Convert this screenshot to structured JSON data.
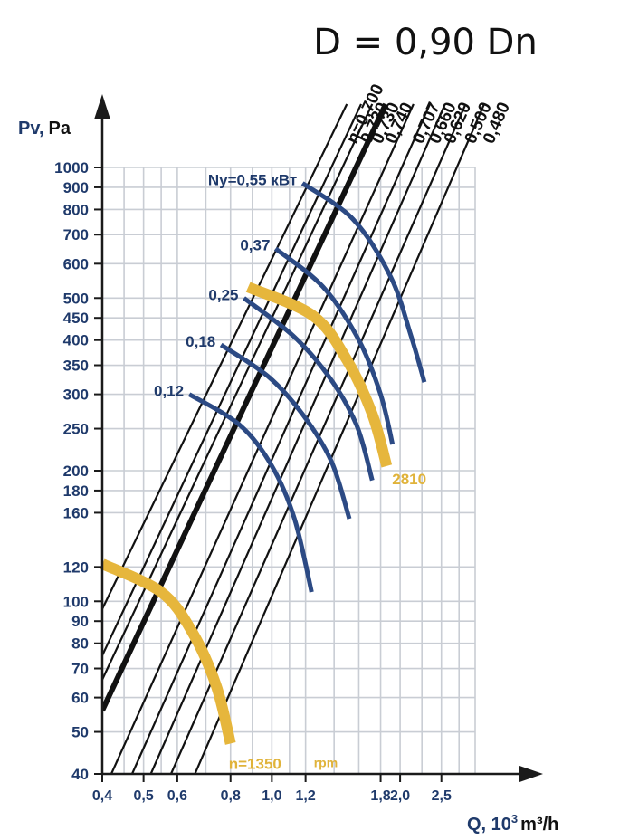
{
  "title": "D = 0,90 Dn",
  "colors": {
    "grid": "#c9cdd4",
    "axis": "#1a1a1a",
    "power_curve": "#2c4a84",
    "speed_curve": "#e6b63c",
    "text_blue": "#1f3a6b"
  },
  "chart_data": {
    "type": "line",
    "x_scale": "log",
    "y_scale": "log",
    "xlabel_prefix": "Q, 10",
    "xlabel_sup": "3",
    "xlabel_suffix": "m³/h",
    "ylabel_prefix": "Pv,",
    "ylabel_suffix": "Pa",
    "x_ticks": [
      0.4,
      0.5,
      0.6,
      0.8,
      1.0,
      1.2,
      1.8,
      2.0,
      2.5
    ],
    "x_tick_labels": [
      "0,4",
      "0,5",
      "0,6",
      "0,8",
      "1,0",
      "1,2",
      "1,8",
      "2,0",
      "2,5"
    ],
    "y_ticks": [
      40,
      50,
      60,
      70,
      80,
      90,
      100,
      120,
      160,
      180,
      200,
      250,
      300,
      350,
      400,
      450,
      500,
      600,
      700,
      800,
      900,
      1000
    ],
    "y_tick_labels": [
      "40",
      "50",
      "60",
      "70",
      "80",
      "90",
      "100",
      "120",
      "160",
      "180",
      "200",
      "250",
      "300",
      "350",
      "400",
      "450",
      "500",
      "600",
      "700",
      "800",
      "900",
      "1000"
    ],
    "efficiency_lines": [
      {
        "label": "η=0,700",
        "bold": false,
        "start": [
          0.4,
          96
        ],
        "end": [
          1.5,
          1400
        ]
      },
      {
        "label": "0,720",
        "bold": false,
        "start": [
          0.4,
          75
        ],
        "end": [
          1.62,
          1400
        ]
      },
      {
        "label": "0,730",
        "bold": false,
        "start": [
          0.4,
          66
        ],
        "end": [
          1.72,
          1400
        ]
      },
      {
        "label": "0,740",
        "bold": true,
        "start": [
          0.4,
          56
        ],
        "end": [
          1.85,
          1400
        ]
      },
      {
        "label": "0,707",
        "bold": false,
        "start": [
          0.42,
          40
        ],
        "end": [
          2.15,
          1400
        ]
      },
      {
        "label": "0,660",
        "bold": false,
        "start": [
          0.47,
          40
        ],
        "end": [
          2.35,
          1400
        ]
      },
      {
        "label": "0,620",
        "bold": false,
        "start": [
          0.52,
          40
        ],
        "end": [
          2.55,
          1400
        ]
      },
      {
        "label": "0,500",
        "bold": false,
        "start": [
          0.58,
          40
        ],
        "end": [
          2.85,
          1400
        ]
      },
      {
        "label": "0,480",
        "bold": false,
        "start": [
          0.66,
          40
        ],
        "end": [
          3.15,
          1400
        ]
      }
    ],
    "power_curves": [
      {
        "label": "Ny=0,55 кВт",
        "points": [
          [
            1.18,
            920
          ],
          [
            1.55,
            760
          ],
          [
            1.9,
            560
          ],
          [
            2.12,
            410
          ],
          [
            2.28,
            320
          ]
        ]
      },
      {
        "label": "0,37",
        "points": [
          [
            1.02,
            650
          ],
          [
            1.32,
            530
          ],
          [
            1.6,
            400
          ],
          [
            1.8,
            300
          ],
          [
            1.92,
            230
          ]
        ]
      },
      {
        "label": "0,25",
        "points": [
          [
            0.86,
            500
          ],
          [
            1.12,
            410
          ],
          [
            1.36,
            330
          ],
          [
            1.58,
            255
          ],
          [
            1.72,
            190
          ]
        ]
      },
      {
        "label": "0,18",
        "points": [
          [
            0.76,
            390
          ],
          [
            0.98,
            330
          ],
          [
            1.18,
            270
          ],
          [
            1.38,
            210
          ],
          [
            1.52,
            155
          ]
        ]
      },
      {
        "label": "0,12",
        "points": [
          [
            0.64,
            300
          ],
          [
            0.84,
            255
          ],
          [
            1.0,
            205
          ],
          [
            1.13,
            155
          ],
          [
            1.24,
            105
          ]
        ]
      }
    ],
    "speed_curves": [
      {
        "label": "2810",
        "points": [
          [
            0.88,
            530
          ],
          [
            1.25,
            455
          ],
          [
            1.5,
            360
          ],
          [
            1.72,
            270
          ],
          [
            1.86,
            205
          ]
        ]
      },
      {
        "label": "n=1350",
        "rpm_label": "rpm",
        "points": [
          [
            0.4,
            122
          ],
          [
            0.55,
            105
          ],
          [
            0.65,
            85
          ],
          [
            0.74,
            64
          ],
          [
            0.8,
            47
          ]
        ]
      }
    ]
  }
}
